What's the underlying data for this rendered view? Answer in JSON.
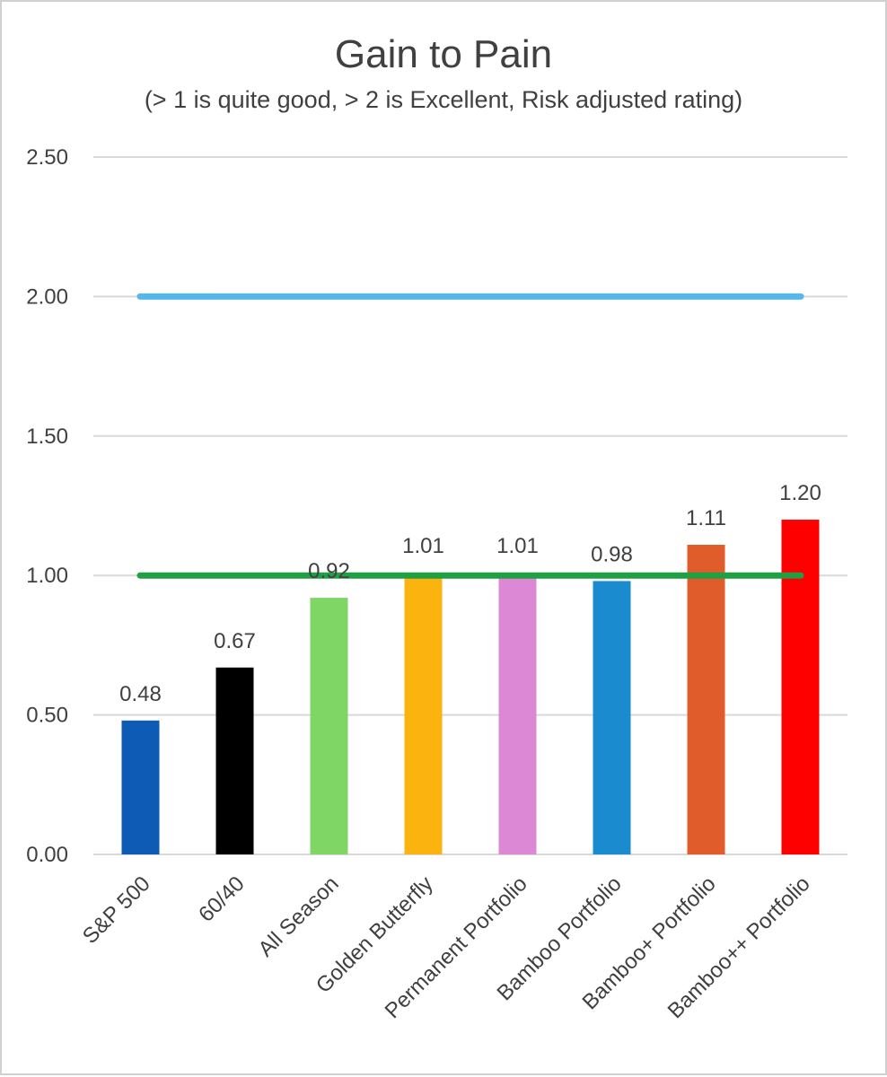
{
  "chart_data": {
    "type": "bar",
    "title": "Gain to Pain",
    "subtitle": "(> 1 is quite good, > 2 is Excellent, Risk adjusted rating)",
    "categories": [
      "S&P 500",
      "60/40",
      "All Season",
      "Golden Butterfly",
      "Permanent Portfolio",
      "Bamboo Portfolio",
      "Bamboo+ Portfolio",
      "Bamboo++ Portfolio"
    ],
    "values": [
      0.48,
      0.67,
      0.92,
      1.01,
      1.01,
      0.98,
      1.11,
      1.2
    ],
    "data_labels": [
      "0.48",
      "0.67",
      "0.92",
      "1.01",
      "1.01",
      "0.98",
      "1.11",
      "1.20"
    ],
    "bar_colors": [
      "#0d5bb5",
      "#000000",
      "#7fd664",
      "#fab30f",
      "#dc88d4",
      "#1b8bd0",
      "#e05c2a",
      "#fe0000"
    ],
    "ylim": [
      0,
      2.5
    ],
    "yticks": [
      0,
      0.5,
      1.0,
      1.5,
      2.0,
      2.5
    ],
    "ytick_labels": [
      "0.00",
      "0.50",
      "1.00",
      "1.50",
      "2.00",
      "2.50"
    ],
    "grid": true,
    "reference_lines": [
      {
        "value": 2.0,
        "color": "#55b8ec"
      },
      {
        "value": 1.0,
        "color": "#1fa043"
      }
    ]
  }
}
